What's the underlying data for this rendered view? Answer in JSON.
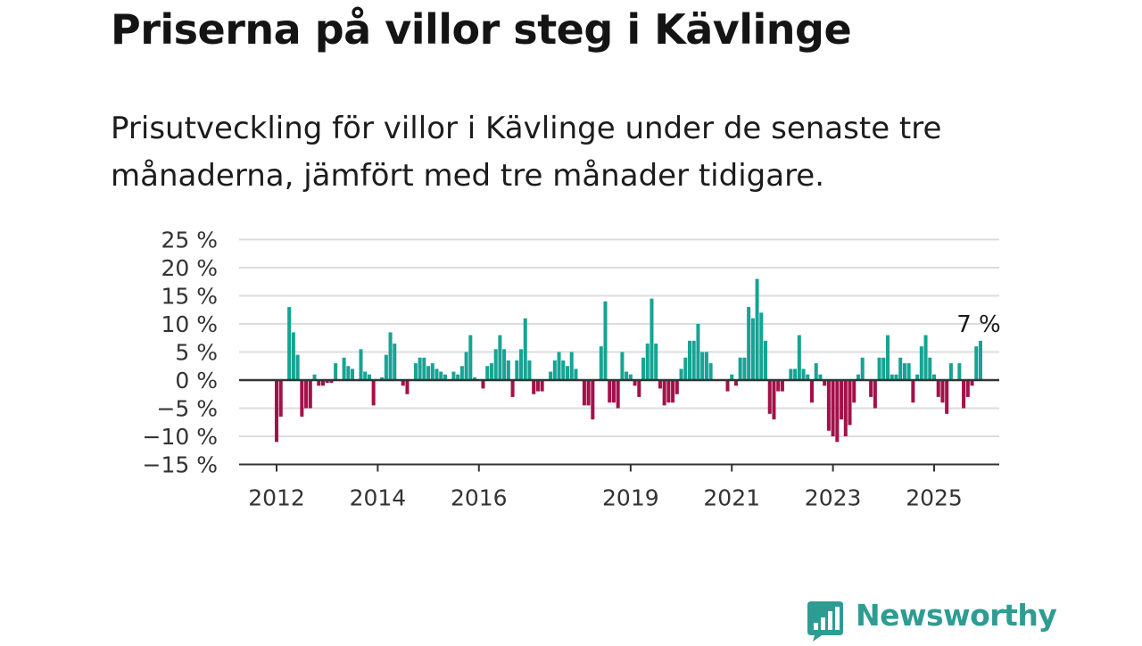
{
  "title": "Priserna på villor steg i Kävlinge",
  "subtitle": "Prisutveckling för villor i Kävlinge under de senaste tre månaderna, jämfört med tre månader tidigare.",
  "brand": {
    "name": "Newsworthy",
    "color": "#2f9c93",
    "icon": "newsworthy-chart-bubble-icon"
  },
  "colors": {
    "positive": "#17a394",
    "negative": "#a3114a",
    "grid": "#dcdcdc",
    "axis": "#333333"
  },
  "chart_data": {
    "type": "bar",
    "ylim": [
      -15,
      25
    ],
    "yticks": [
      25,
      20,
      15,
      10,
      5,
      0,
      -5,
      -10,
      -15
    ],
    "ytick_labels": [
      "25 %",
      "20 %",
      "15 %",
      "10 %",
      "5 %",
      "0 %",
      "−5 %",
      "−10 %",
      "−15 %"
    ],
    "xticks": [
      {
        "label": "2012",
        "year": 2012.0
      },
      {
        "label": "2014",
        "year": 2014.0
      },
      {
        "label": "2016",
        "year": 2016.0
      },
      {
        "label": "2019",
        "year": 2019.0
      },
      {
        "label": "2021",
        "year": 2021.0
      },
      {
        "label": "2023",
        "year": 2023.0
      },
      {
        "label": "2025",
        "year": 2025.0
      }
    ],
    "annotation": {
      "text": "7 %"
    },
    "grid": true,
    "series": [
      {
        "x_start": "2012-01",
        "step": "month",
        "values": [
          -11,
          -6.5,
          0,
          13,
          8.5,
          4.5,
          -6.5,
          -5,
          -5,
          1,
          -1,
          -1,
          -0.5,
          -0.5,
          3,
          0,
          4,
          2.5,
          2,
          0,
          5.5,
          1.5,
          1,
          -4.5,
          0,
          0.5,
          4.5,
          8.5,
          6.5,
          0,
          -1,
          -2.5,
          0,
          3,
          4,
          4,
          2.5,
          3,
          2,
          1.5,
          1,
          0,
          1.5,
          1,
          2.5,
          5,
          8,
          0.5,
          0,
          -1.5,
          2.5,
          3,
          5.5,
          8,
          5.5,
          3.5,
          -3,
          3.5,
          5.5,
          11,
          3.5,
          -2.5,
          -2,
          -2,
          0,
          1.5,
          3.5,
          5,
          3.5,
          2.5,
          5,
          2,
          0,
          -4.5,
          -4.5,
          -7,
          0,
          6,
          14,
          -4,
          -4,
          -5,
          5,
          1.5,
          1,
          -1,
          -3,
          4,
          6.5,
          14.5,
          6.5,
          -1.5,
          -4.5,
          -4,
          -4,
          -2.5,
          2,
          4,
          7,
          7,
          10,
          5,
          5,
          3,
          0,
          0,
          0,
          -2,
          1,
          -1,
          4,
          4,
          13,
          11,
          18,
          12,
          7,
          -6,
          -7,
          -2,
          -2,
          0,
          2,
          2,
          8,
          2,
          1,
          -4,
          3,
          1,
          -1,
          -9,
          -10,
          -11,
          -7,
          -10,
          -8,
          -4,
          1,
          4,
          0,
          -3,
          -5,
          4,
          4,
          8,
          1,
          1,
          4,
          3,
          3,
          -4,
          1,
          6,
          8,
          4,
          1,
          -3,
          -4,
          -6,
          3,
          0,
          3,
          -5,
          -3,
          -1,
          6,
          7
        ]
      }
    ]
  }
}
